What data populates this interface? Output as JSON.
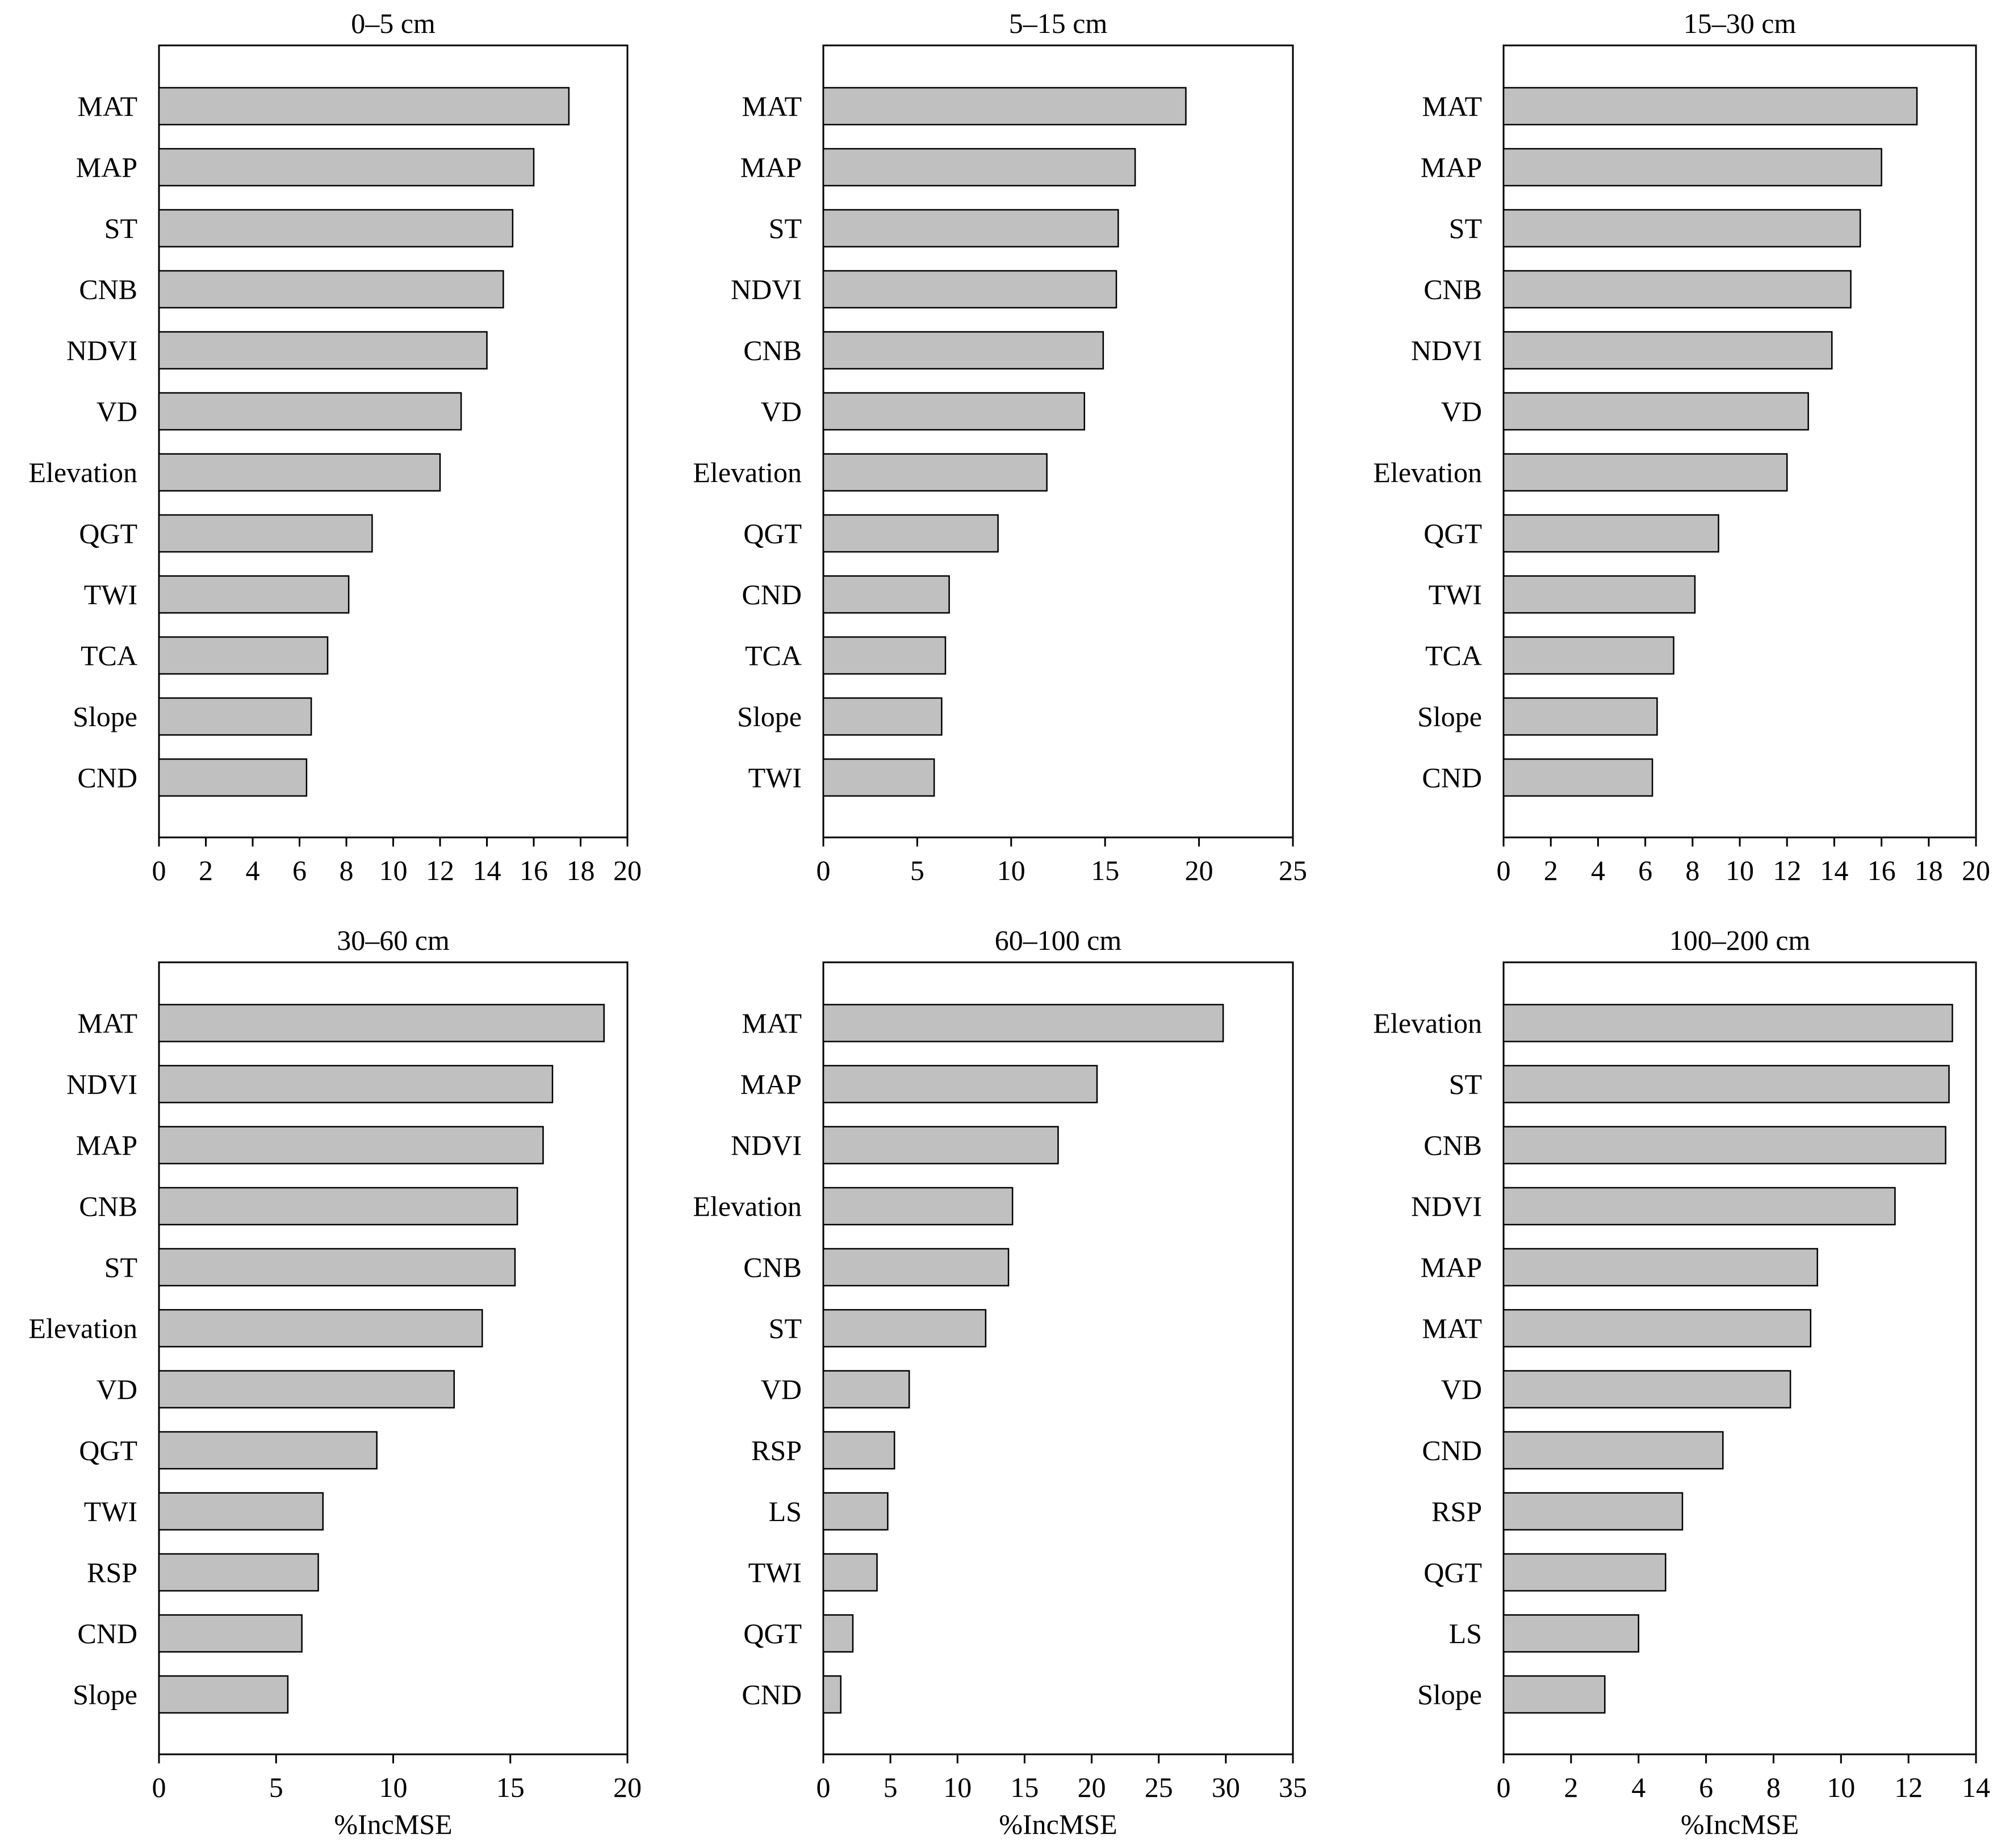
{
  "chart_data": [
    {
      "type": "bar",
      "orientation": "horizontal",
      "title": "0–5 cm",
      "xlabel": "",
      "xlim": [
        0,
        20
      ],
      "xticks": [
        "0",
        "2",
        "4",
        "6",
        "8",
        "10",
        "12",
        "14",
        "16",
        "18",
        "20"
      ],
      "categories": [
        "MAT",
        "MAP",
        "ST",
        "CNB",
        "NDVI",
        "VD",
        "Elevation",
        "QGT",
        "TWI",
        "TCA",
        "Slope",
        "CND"
      ],
      "values": [
        17.5,
        16.0,
        15.1,
        14.7,
        14.0,
        12.9,
        12.0,
        9.1,
        8.1,
        7.2,
        6.5,
        6.3
      ]
    },
    {
      "type": "bar",
      "orientation": "horizontal",
      "title": "5–15 cm",
      "xlabel": "",
      "xlim": [
        0,
        25
      ],
      "xticks": [
        "0",
        "5",
        "10",
        "15",
        "20",
        "25"
      ],
      "categories": [
        "MAT",
        "MAP",
        "ST",
        "NDVI",
        "CNB",
        "VD",
        "Elevation",
        "QGT",
        "CND",
        "TCA",
        "Slope",
        "TWI"
      ],
      "values": [
        19.3,
        16.6,
        15.7,
        15.6,
        14.9,
        13.9,
        11.9,
        9.3,
        6.7,
        6.5,
        6.3,
        5.9
      ]
    },
    {
      "type": "bar",
      "orientation": "horizontal",
      "title": "15–30 cm",
      "xlabel": "",
      "xlim": [
        0,
        20
      ],
      "xticks": [
        "0",
        "2",
        "4",
        "6",
        "8",
        "10",
        "12",
        "14",
        "16",
        "18",
        "20"
      ],
      "categories": [
        "MAT",
        "MAP",
        "ST",
        "CNB",
        "NDVI",
        "VD",
        "Elevation",
        "QGT",
        "TWI",
        "TCA",
        "Slope",
        "CND"
      ],
      "values": [
        17.5,
        16.0,
        15.1,
        14.7,
        13.9,
        12.9,
        12.0,
        9.1,
        8.1,
        7.2,
        6.5,
        6.3
      ]
    },
    {
      "type": "bar",
      "orientation": "horizontal",
      "title": "30–60 cm",
      "xlabel": "%IncMSE",
      "xlim": [
        0,
        20
      ],
      "xticks": [
        "0",
        "5",
        "10",
        "15",
        "20"
      ],
      "categories": [
        "MAT",
        "NDVI",
        "MAP",
        "CNB",
        "ST",
        "Elevation",
        "VD",
        "QGT",
        "TWI",
        "RSP",
        "CND",
        "Slope"
      ],
      "values": [
        19.0,
        16.8,
        16.4,
        15.3,
        15.2,
        13.8,
        12.6,
        9.3,
        7.0,
        6.8,
        6.1,
        5.5
      ]
    },
    {
      "type": "bar",
      "orientation": "horizontal",
      "title": "60–100 cm",
      "xlabel": "%IncMSE",
      "xlim": [
        0,
        35
      ],
      "xticks": [
        "0",
        "5",
        "10",
        "15",
        "20",
        "25",
        "30",
        "35"
      ],
      "categories": [
        "MAT",
        "MAP",
        "NDVI",
        "Elevation",
        "CNB",
        "ST",
        "VD",
        "RSP",
        "LS",
        "TWI",
        "QGT",
        "CND"
      ],
      "values": [
        29.8,
        20.4,
        17.5,
        14.1,
        13.8,
        12.1,
        6.4,
        5.3,
        4.8,
        4.0,
        2.2,
        1.3
      ]
    },
    {
      "type": "bar",
      "orientation": "horizontal",
      "title": "100–200 cm",
      "xlabel": "%IncMSE",
      "xlim": [
        0,
        14
      ],
      "xticks": [
        "0",
        "2",
        "4",
        "6",
        "8",
        "10",
        "12",
        "14"
      ],
      "categories": [
        "Elevation",
        "ST",
        "CNB",
        "NDVI",
        "MAP",
        "MAT",
        "VD",
        "CND",
        "RSP",
        "QGT",
        "LS",
        "Slope"
      ],
      "values": [
        13.3,
        13.2,
        13.1,
        11.6,
        9.3,
        9.1,
        8.5,
        6.5,
        5.3,
        4.8,
        4.0,
        3.0
      ]
    }
  ]
}
